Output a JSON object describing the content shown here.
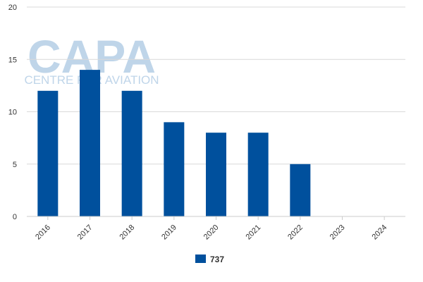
{
  "watermark": {
    "logo": "CAPA",
    "tagline": "CENTRE FOR AVIATION",
    "color": "#bcd3e8"
  },
  "chart_data": {
    "type": "bar",
    "categories": [
      "2016",
      "2017",
      "2018",
      "2019",
      "2020",
      "2021",
      "2022",
      "2023",
      "2024"
    ],
    "series": [
      {
        "name": "737",
        "values": [
          12,
          14,
          12,
          9,
          8,
          8,
          5,
          0,
          0
        ],
        "color": "#00509d"
      }
    ],
    "yticks": [
      "0",
      "5",
      "10",
      "15",
      "20"
    ],
    "ylim": [
      0,
      20
    ],
    "grid": true,
    "legend_position": "bottom-center"
  }
}
